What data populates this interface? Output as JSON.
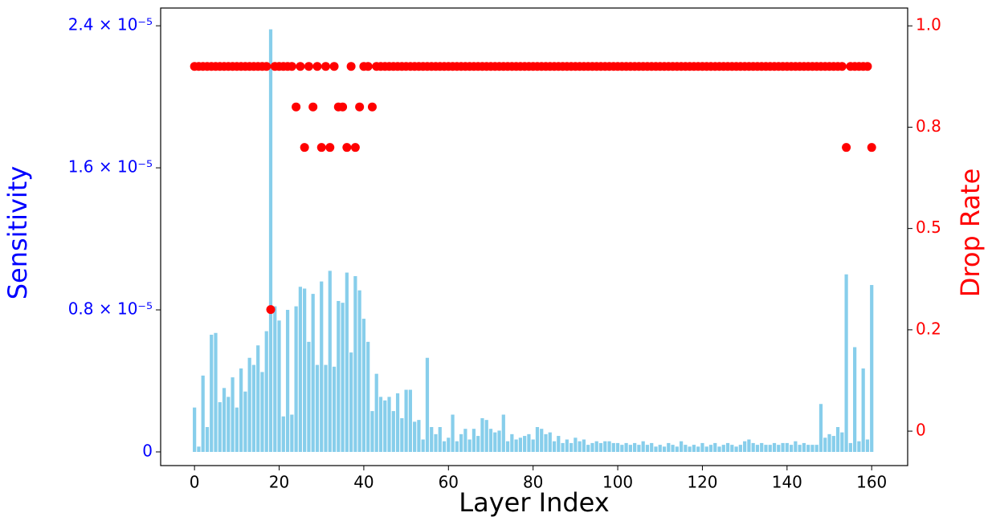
{
  "chart_data": {
    "type": "bar",
    "xlabel": "Layer Index",
    "ylabel": "Sensitivity",
    "y2label": "Drop Rate",
    "x": [
      0,
      1,
      2,
      3,
      4,
      5,
      6,
      7,
      8,
      9,
      10,
      11,
      12,
      13,
      14,
      15,
      16,
      17,
      18,
      19,
      20,
      21,
      22,
      23,
      24,
      25,
      26,
      27,
      28,
      29,
      30,
      31,
      32,
      33,
      34,
      35,
      36,
      37,
      38,
      39,
      40,
      41,
      42,
      43,
      44,
      45,
      46,
      47,
      48,
      49,
      50,
      51,
      52,
      53,
      54,
      55,
      56,
      57,
      58,
      59,
      60,
      61,
      62,
      63,
      64,
      65,
      66,
      67,
      68,
      69,
      70,
      71,
      72,
      73,
      74,
      75,
      76,
      77,
      78,
      79,
      80,
      81,
      82,
      83,
      84,
      85,
      86,
      87,
      88,
      89,
      90,
      91,
      92,
      93,
      94,
      95,
      96,
      97,
      98,
      99,
      100,
      101,
      102,
      103,
      104,
      105,
      106,
      107,
      108,
      109,
      110,
      111,
      112,
      113,
      114,
      115,
      116,
      117,
      118,
      119,
      120,
      121,
      122,
      123,
      124,
      125,
      126,
      127,
      128,
      129,
      130,
      131,
      132,
      133,
      134,
      135,
      136,
      137,
      138,
      139,
      140,
      141,
      142,
      143,
      144,
      145,
      146,
      147,
      148,
      149,
      150,
      151,
      152,
      153,
      154,
      155,
      156,
      157,
      158,
      159,
      160
    ],
    "series": [
      {
        "type": "bar",
        "color": "#87ceeb",
        "axis": "y",
        "values": [
          2.5e-06,
          3e-07,
          4.3e-06,
          1.4e-06,
          6.6e-06,
          6.7e-06,
          2.8e-06,
          3.6e-06,
          3.1e-06,
          4.2e-06,
          2.5e-06,
          4.7e-06,
          3.4e-06,
          5.3e-06,
          4.9e-06,
          6e-06,
          4.5e-06,
          6.8e-06,
          2.38e-05,
          8.2e-06,
          7.4e-06,
          2e-06,
          8e-06,
          2.1e-06,
          8.2e-06,
          9.3e-06,
          9.2e-06,
          6.2e-06,
          8.9e-06,
          4.9e-06,
          9.6e-06,
          4.9e-06,
          1.02e-05,
          4.8e-06,
          8.5e-06,
          8.4e-06,
          1.01e-05,
          5.6e-06,
          9.9e-06,
          9.1e-06,
          7.5e-06,
          6.2e-06,
          2.3e-06,
          4.4e-06,
          3.1e-06,
          2.9e-06,
          3.1e-06,
          2.3e-06,
          3.3e-06,
          1.9e-06,
          3.5e-06,
          3.5e-06,
          1.7e-06,
          1.8e-06,
          7e-07,
          5.3e-06,
          1.4e-06,
          1e-06,
          1.4e-06,
          6e-07,
          8e-07,
          2.1e-06,
          6e-07,
          1e-06,
          1.3e-06,
          7e-07,
          1.3e-06,
          9e-07,
          1.9e-06,
          1.8e-06,
          1.3e-06,
          1.1e-06,
          1.2e-06,
          2.1e-06,
          6e-07,
          1e-06,
          7e-07,
          8e-07,
          9e-07,
          1e-06,
          7e-07,
          1.4e-06,
          1.3e-06,
          1e-06,
          1.1e-06,
          6e-07,
          9e-07,
          5e-07,
          7e-07,
          5e-07,
          8e-07,
          6e-07,
          7e-07,
          4e-07,
          5e-07,
          6e-07,
          5e-07,
          6e-07,
          6e-07,
          5e-07,
          5e-07,
          4e-07,
          5e-07,
          4e-07,
          5e-07,
          4e-07,
          6e-07,
          4e-07,
          5e-07,
          3e-07,
          4e-07,
          3e-07,
          5e-07,
          4e-07,
          3e-07,
          6e-07,
          4e-07,
          3e-07,
          4e-07,
          3e-07,
          5e-07,
          3e-07,
          4e-07,
          5e-07,
          3e-07,
          4e-07,
          5e-07,
          4e-07,
          3e-07,
          4e-07,
          6e-07,
          7e-07,
          5e-07,
          4e-07,
          5e-07,
          4e-07,
          4e-07,
          5e-07,
          4e-07,
          5e-07,
          5e-07,
          4e-07,
          6e-07,
          4e-07,
          5e-07,
          4e-07,
          4e-07,
          4e-07,
          2.7e-06,
          8e-07,
          1e-06,
          9e-07,
          1.4e-06,
          1.1e-06,
          1e-05,
          5e-07,
          5.9e-06,
          6e-07,
          4.7e-06,
          7e-07,
          9.4e-06
        ]
      },
      {
        "type": "scatter",
        "color": "#ff0000",
        "axis": "y2",
        "values": [
          0.9,
          0.9,
          0.9,
          0.9,
          0.9,
          0.9,
          0.9,
          0.9,
          0.9,
          0.9,
          0.9,
          0.9,
          0.9,
          0.9,
          0.9,
          0.9,
          0.9,
          0.9,
          0.3,
          0.9,
          0.9,
          0.9,
          0.9,
          0.9,
          0.8,
          0.9,
          0.7,
          0.9,
          0.8,
          0.9,
          0.7,
          0.9,
          0.7,
          0.9,
          0.8,
          0.8,
          0.7,
          0.9,
          0.7,
          0.8,
          0.9,
          0.9,
          0.8,
          0.9,
          0.9,
          0.9,
          0.9,
          0.9,
          0.9,
          0.9,
          0.9,
          0.9,
          0.9,
          0.9,
          0.9,
          0.9,
          0.9,
          0.9,
          0.9,
          0.9,
          0.9,
          0.9,
          0.9,
          0.9,
          0.9,
          0.9,
          0.9,
          0.9,
          0.9,
          0.9,
          0.9,
          0.9,
          0.9,
          0.9,
          0.9,
          0.9,
          0.9,
          0.9,
          0.9,
          0.9,
          0.9,
          0.9,
          0.9,
          0.9,
          0.9,
          0.9,
          0.9,
          0.9,
          0.9,
          0.9,
          0.9,
          0.9,
          0.9,
          0.9,
          0.9,
          0.9,
          0.9,
          0.9,
          0.9,
          0.9,
          0.9,
          0.9,
          0.9,
          0.9,
          0.9,
          0.9,
          0.9,
          0.9,
          0.9,
          0.9,
          0.9,
          0.9,
          0.9,
          0.9,
          0.9,
          0.9,
          0.9,
          0.9,
          0.9,
          0.9,
          0.9,
          0.9,
          0.9,
          0.9,
          0.9,
          0.9,
          0.9,
          0.9,
          0.9,
          0.9,
          0.9,
          0.9,
          0.9,
          0.9,
          0.9,
          0.9,
          0.9,
          0.9,
          0.9,
          0.9,
          0.9,
          0.9,
          0.9,
          0.9,
          0.9,
          0.9,
          0.9,
          0.9,
          0.9,
          0.9,
          0.9,
          0.9,
          0.9,
          0.9,
          0.7,
          0.9,
          0.9,
          0.9,
          0.9,
          0.9,
          0.7
        ]
      }
    ],
    "ylabel_color": "#0000ff",
    "y2label_color": "#ff0000",
    "xlim": [
      -8,
      168.5
    ],
    "xticks": [
      0,
      20,
      40,
      60,
      80,
      100,
      120,
      140,
      160
    ],
    "ylim": [
      -7.7e-07,
      2.5e-05
    ],
    "yticks": [
      0,
      {
        "value": 8e-06,
        "label": "0.8 × 10⁻⁵"
      },
      {
        "value": 1.6e-05,
        "label": "1.6 × 10⁻⁵"
      },
      {
        "value": 2.4e-05,
        "label": "2.4 × 10⁻⁵"
      }
    ],
    "y2lim": [
      -0.085,
      1.044
    ],
    "y2ticks": [
      0,
      {
        "value": 0.25,
        "label": "0.2"
      },
      0.5,
      {
        "value": 0.75,
        "label": "0.8"
      },
      {
        "value": 1,
        "label": "1.0"
      }
    ]
  }
}
